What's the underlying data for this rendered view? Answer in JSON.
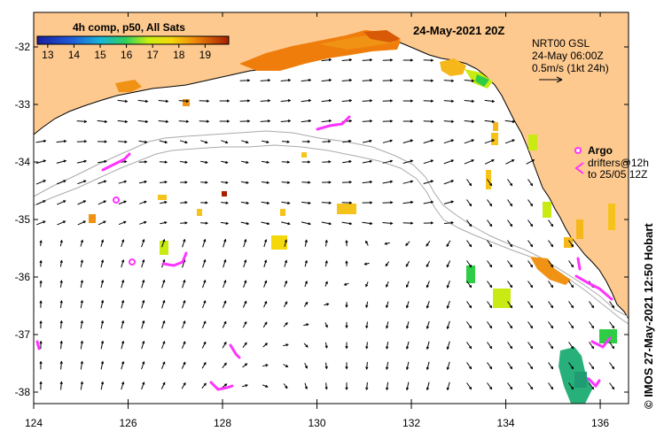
{
  "map": {
    "title": "24-May-2021 20Z",
    "lon_range": [
      124,
      136.6
    ],
    "lat_range": [
      -38.2,
      -31.4
    ],
    "lon_ticks": [
      "124",
      "126",
      "128",
      "130",
      "132",
      "134",
      "136"
    ],
    "lat_ticks": [
      "-32",
      "-33",
      "-34",
      "-35",
      "-36",
      "-37",
      "-38"
    ]
  },
  "colorbar": {
    "title": "4h comp, p50, All Sats",
    "ticks": [
      "13",
      "14",
      "15",
      "16",
      "17",
      "18",
      "19"
    ],
    "range": [
      12.6,
      19.9
    ]
  },
  "legend": {
    "product": "NRT00 GSL",
    "valid": "24-May 06:00Z",
    "scale": "0.5m/s (1kt 24h)",
    "argo_label": "Argo",
    "drifters_line1": "drifters@12h",
    "drifters_line2": "to 25/05 12Z"
  },
  "credit": "© IMOS 27-May-2021 12:50 Hobart",
  "colors": {
    "land": "#fdc98f",
    "argo": "#ff33ff",
    "bathy": "#aaaaaa",
    "arrow": "#000000"
  }
}
